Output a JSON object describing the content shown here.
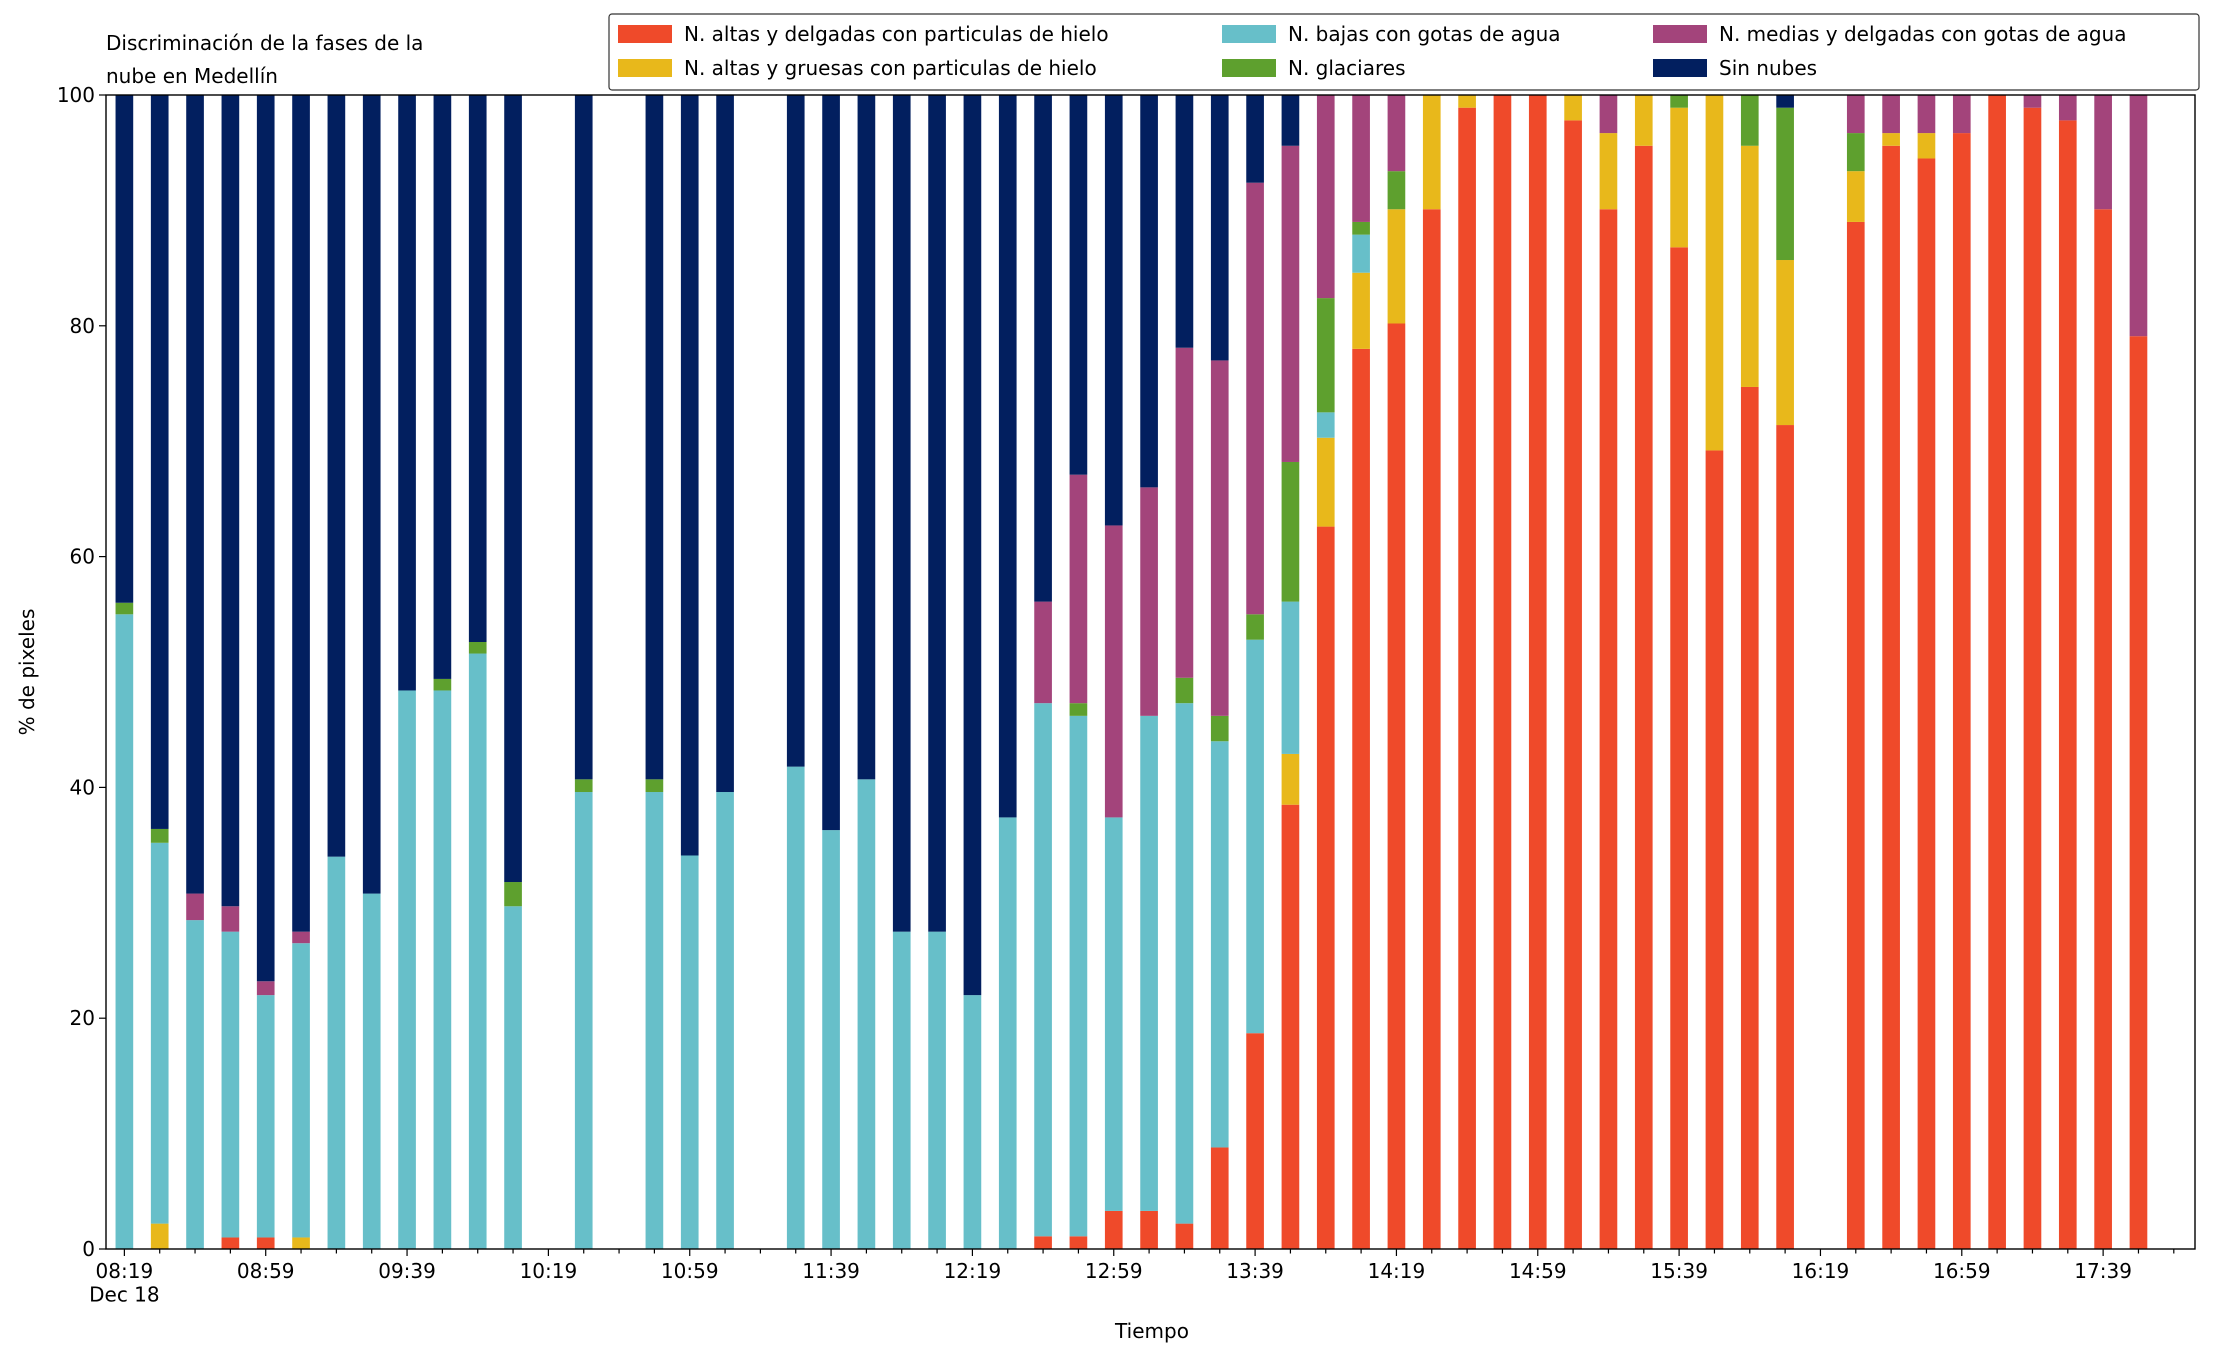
{
  "chart_data": {
    "type": "stacked_bar",
    "title": "Discriminación de la fases de la\nnube en Medellín",
    "x_label": "Tiempo",
    "y_label": "% de pixeles",
    "categories": [
      "08:19\nDec 18",
      null,
      null,
      null,
      "08:59",
      null,
      null,
      null,
      "09:39",
      null,
      null,
      null,
      "10:19",
      null,
      null,
      null,
      "10:59",
      null,
      null,
      null,
      "11:39",
      null,
      null,
      null,
      "12:19",
      null,
      null,
      null,
      "12:59",
      null,
      null,
      null,
      "13:39",
      null,
      null,
      null,
      "14:19",
      null,
      null,
      null,
      "14:59",
      null,
      null,
      null,
      "15:39",
      null,
      null,
      null,
      "16:19",
      null,
      null,
      null,
      "16:59",
      null,
      null,
      null,
      "17:39",
      null,
      null
    ],
    "series": [
      {
        "name": "N. altas y delgadas con particulas de hielo",
        "color": "#ef4a2a",
        "values": [
          0,
          0,
          0,
          1,
          1,
          0,
          0,
          0,
          0,
          0,
          0,
          0,
          null,
          0,
          null,
          0,
          0,
          0,
          null,
          0,
          0,
          0,
          0,
          0,
          0,
          0,
          1.1,
          1.1,
          3.3,
          3.3,
          2.2,
          8.8,
          18.7,
          38.5,
          62.6,
          78,
          80.2,
          90.1,
          98.9,
          100,
          100,
          97.8,
          90.1,
          95.6,
          86.8,
          69.2,
          74.7,
          71.4,
          null,
          89,
          95.6,
          94.5,
          96.7,
          100,
          98.9,
          97.8,
          90.1,
          79.1,
          null
        ]
      },
      {
        "name": "N. altas y gruesas con particulas de hielo",
        "color": "#e8b81b",
        "values": [
          0,
          2.2,
          0,
          0,
          0,
          1,
          0,
          0,
          0,
          0,
          0,
          0,
          null,
          0,
          null,
          0,
          0,
          0,
          null,
          0,
          0,
          0,
          0,
          0,
          0,
          0,
          0,
          0,
          0,
          0,
          0,
          0,
          0,
          4.4,
          7.7,
          6.6,
          9.9,
          9.9,
          1.1,
          0,
          0,
          2.2,
          6.6,
          4.4,
          12.1,
          30.8,
          20.9,
          14.3,
          null,
          4.4,
          1.1,
          2.2,
          0,
          0,
          0,
          0,
          0,
          0,
          null
        ]
      },
      {
        "name": "N. bajas con gotas de agua",
        "color": "#67bfc9",
        "values": [
          55,
          33,
          28.5,
          26.5,
          21,
          25.5,
          34,
          30.8,
          48.4,
          48.4,
          51.6,
          29.7,
          null,
          39.6,
          null,
          39.6,
          34.1,
          39.6,
          null,
          41.8,
          36.3,
          40.7,
          27.5,
          27.5,
          22,
          37.4,
          46.2,
          45.1,
          34.1,
          42.9,
          45.1,
          35.2,
          34.1,
          13.2,
          2.2,
          3.3,
          0,
          0,
          0,
          0,
          0,
          0,
          0,
          0,
          0,
          0,
          0,
          0,
          null,
          0,
          0,
          0,
          0,
          0,
          0,
          0,
          0,
          0,
          null
        ]
      },
      {
        "name": "N. glaciares",
        "color": "#5ea02e",
        "values": [
          1,
          1.2,
          0,
          0,
          0,
          0,
          0,
          0,
          0,
          1,
          1,
          2.1,
          null,
          1.1,
          null,
          1.1,
          0,
          0,
          null,
          0,
          0,
          0,
          0,
          0,
          0,
          0,
          0,
          1.1,
          0,
          0,
          2.2,
          2.2,
          2.2,
          12.1,
          9.9,
          1.1,
          3.3,
          0,
          0,
          0,
          0,
          0,
          0,
          0,
          1.1,
          0,
          4.4,
          13.2,
          null,
          3.3,
          0,
          0,
          0,
          0,
          0,
          0,
          0,
          0,
          null
        ]
      },
      {
        "name": "N. medias y delgadas con gotas de agua",
        "color": "#a3447b",
        "values": [
          0,
          0,
          2.3,
          2.2,
          1.2,
          1,
          0,
          0,
          0,
          0,
          0,
          0,
          null,
          0,
          null,
          0,
          0,
          0,
          null,
          0,
          0,
          0,
          0,
          0,
          0,
          0,
          8.8,
          19.8,
          25.3,
          19.8,
          28.6,
          30.8,
          37.4,
          27.4,
          17.6,
          11,
          6.6,
          0,
          0,
          0,
          0,
          0,
          3.3,
          0,
          0,
          0,
          0,
          0,
          null,
          3.3,
          3.3,
          3.3,
          3.3,
          0,
          1.1,
          2.2,
          9.9,
          20.9,
          null
        ]
      },
      {
        "name": "Sin nubes",
        "color": "#021f5f",
        "values": [
          44,
          63.6,
          69.2,
          70.3,
          76.8,
          72.5,
          66,
          69.2,
          51.6,
          50.6,
          47.4,
          68.2,
          null,
          59.3,
          null,
          59.3,
          65.9,
          60.4,
          null,
          58.2,
          63.7,
          59.3,
          72.5,
          72.5,
          78,
          62.6,
          43.9,
          32.9,
          37.3,
          34,
          21.9,
          23,
          7.6,
          4.4,
          0,
          0,
          0,
          0,
          0,
          0,
          0,
          0,
          0,
          0,
          0,
          0,
          0,
          1.1,
          null,
          0,
          0,
          0,
          0,
          0,
          0,
          0,
          0,
          0,
          null
        ]
      }
    ],
    "ylim": [
      0,
      100
    ],
    "yticks": [
      0,
      20,
      40,
      60,
      80,
      100
    ],
    "grid": false,
    "legend": "upper right"
  }
}
